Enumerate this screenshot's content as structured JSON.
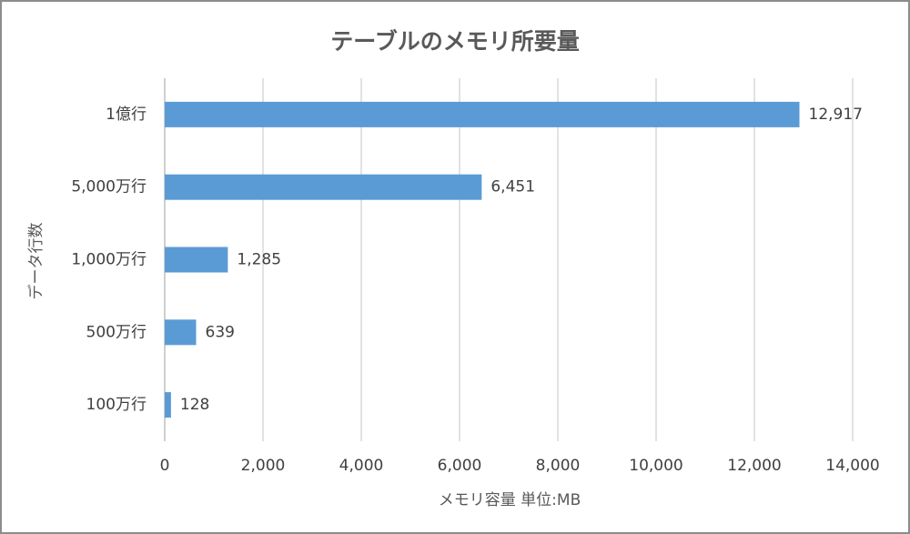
{
  "chart_data": {
    "type": "bar",
    "orientation": "horizontal",
    "title": "テーブルのメモリ所要量",
    "x_label": "メモリ容量 単位:MB",
    "y_label": "データ行数",
    "categories": [
      "1億行",
      "5,000万行",
      "1,000万行",
      "500万行",
      "100万行"
    ],
    "values": [
      12917,
      6451,
      1285,
      639,
      128
    ],
    "value_labels": [
      "12,917",
      "6,451",
      "1,285",
      "639",
      "128"
    ],
    "color": "#5b9bd5",
    "xlim": [
      0,
      14000
    ],
    "xticks": [
      0,
      {
        "value": 2000,
        "label": "2,000"
      },
      {
        "value": 4000,
        "label": "4,000"
      },
      {
        "value": 6000,
        "label": "6,000"
      },
      {
        "value": 8000,
        "label": "8,000"
      },
      {
        "value": 10000,
        "label": "10,000"
      },
      {
        "value": 12000,
        "label": "12,000"
      },
      {
        "value": 14000,
        "label": "14,000"
      }
    ],
    "grid": true
  }
}
